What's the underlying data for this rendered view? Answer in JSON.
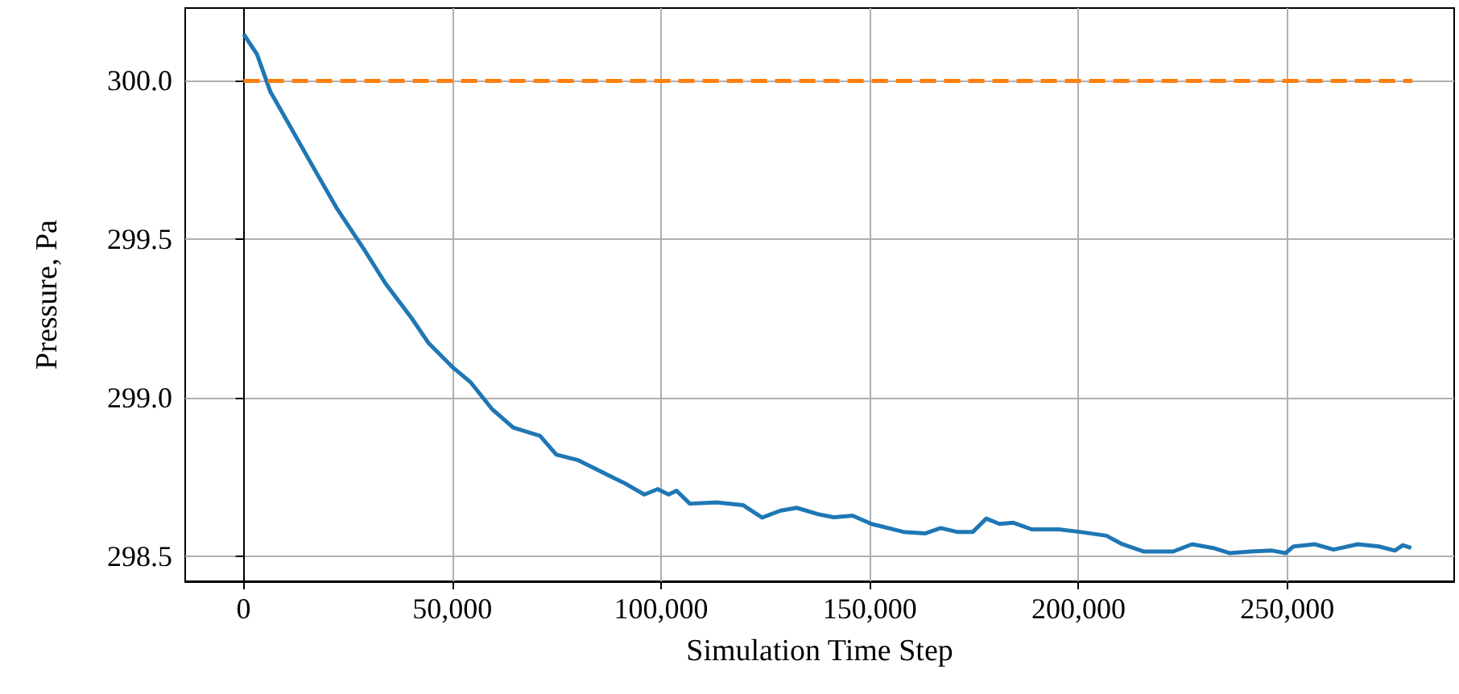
{
  "chart_data": {
    "type": "line",
    "xlabel": "Simulation Time Step",
    "ylabel": "Pressure, Pa",
    "xlim": [
      -14000,
      290000
    ],
    "ylim": [
      298.42,
      300.23
    ],
    "xticks": [
      0,
      {
        "value": 50000,
        "label": "50,000"
      },
      {
        "value": 100000,
        "label": "100,000"
      },
      {
        "value": 150000,
        "label": "150,000"
      },
      {
        "value": 200000,
        "label": "200,000"
      },
      {
        "value": 250000,
        "label": "250,000"
      }
    ],
    "yticks": [
      {
        "value": 298.5,
        "label": "298.5"
      },
      {
        "value": 299,
        "label": "299.0"
      },
      {
        "value": 299.5,
        "label": "299.5"
      },
      {
        "value": 300,
        "label": "300.0"
      }
    ],
    "grid": true,
    "marker": "none",
    "series": [
      {
        "color": "#1f77b4",
        "line_style": "solid",
        "x": [
          0,
          3200,
          6400,
          11500,
          17300,
          22400,
          28800,
          34000,
          40300,
          44200,
          49900,
          54400,
          59500,
          64600,
          71000,
          74900,
          80000,
          86400,
          91500,
          96000,
          99200,
          101800,
          103700,
          106900,
          113300,
          119700,
          124200,
          128600,
          132500,
          137600,
          141400,
          145900,
          150400,
          158100,
          163200,
          167000,
          170900,
          174700,
          177900,
          181100,
          184300,
          188800,
          195200,
          200300,
          206700,
          210500,
          215700,
          222700,
          227200,
          232300,
          236200,
          241300,
          246400,
          249600,
          251500,
          256600,
          261100,
          266900,
          272000,
          275800,
          277700,
          279700
        ],
        "values": [
          300.148,
          300.084,
          299.966,
          299.848,
          299.713,
          299.596,
          299.469,
          299.36,
          299.25,
          299.174,
          299.098,
          299.048,
          298.964,
          298.905,
          298.879,
          298.82,
          298.803,
          298.761,
          298.728,
          298.694,
          298.711,
          298.694,
          298.706,
          298.665,
          298.669,
          298.66,
          298.621,
          298.643,
          298.652,
          298.632,
          298.622,
          298.627,
          298.601,
          298.576,
          298.571,
          298.588,
          298.576,
          298.576,
          298.618,
          298.601,
          298.605,
          298.584,
          298.584,
          298.576,
          298.564,
          298.537,
          298.514,
          298.514,
          298.537,
          298.525,
          298.509,
          298.514,
          298.517,
          298.509,
          298.53,
          298.537,
          298.52,
          298.537,
          298.53,
          298.517,
          298.534,
          298.525
        ]
      },
      {
        "color": "#ff7f0e",
        "line_style": "dashed",
        "x": [
          0,
          280000
        ],
        "values": [
          300,
          300
        ]
      }
    ]
  }
}
